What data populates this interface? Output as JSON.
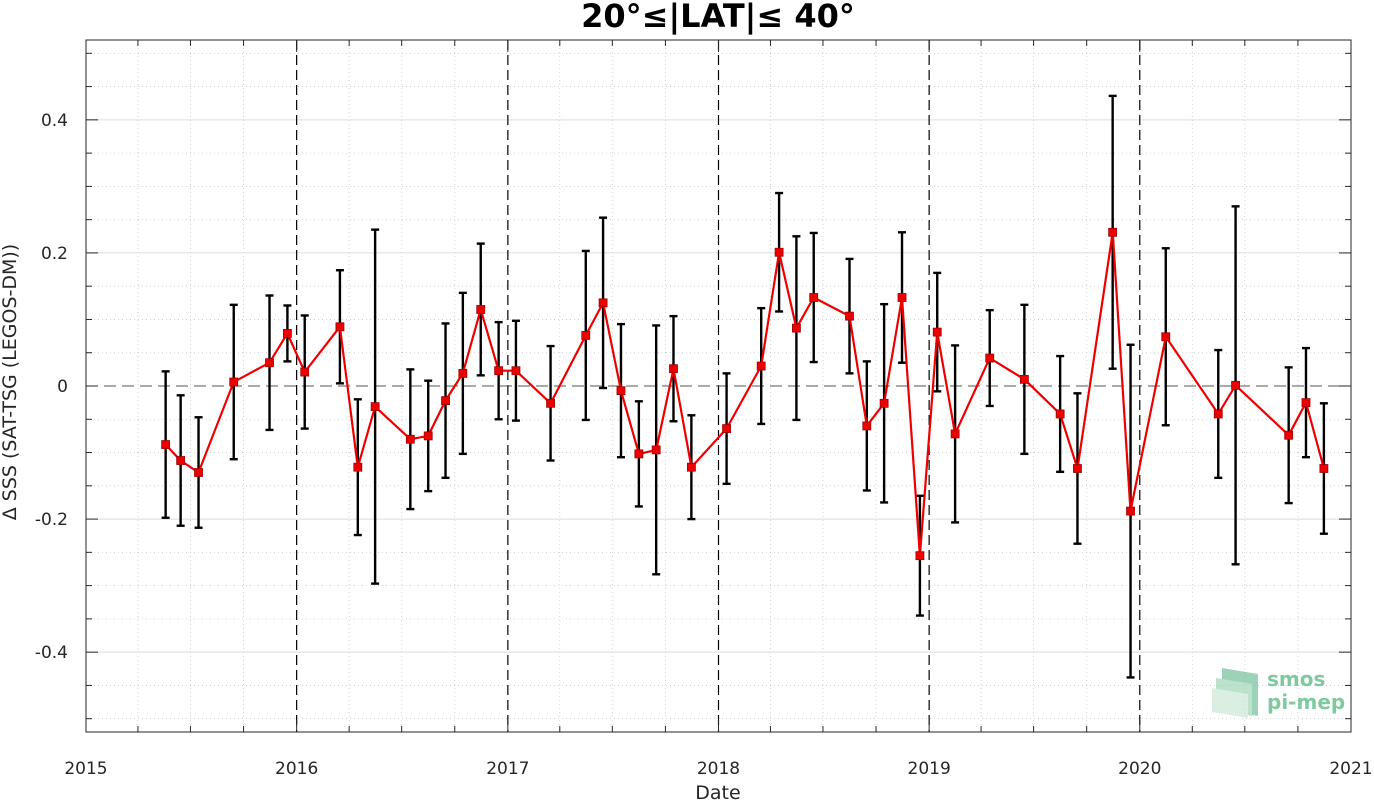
{
  "chart_data": {
    "type": "line",
    "title": "20°≤|LAT|≤ 40°",
    "xlabel": "Date",
    "ylabel": "Δ SSS (SAT-TSG (LEGOS-DM))",
    "xlim": [
      "2015-01-01",
      "2021-01-01"
    ],
    "ylim": [
      -0.52,
      0.52
    ],
    "x_tick_labels": [
      "2015",
      "2016",
      "2017",
      "2018",
      "2019",
      "2020",
      "2021"
    ],
    "y_ticks": [
      -0.4,
      -0.2,
      0,
      0.2,
      0.4
    ],
    "y_tick_labels": [
      "-0.4",
      "-0.2",
      "0",
      "0.2",
      "0.4"
    ],
    "grid": true,
    "year_boundary_dashed_lines": [
      "2016",
      "2017",
      "2018",
      "2019",
      "2020"
    ],
    "zero_reference_line": 0,
    "colors": {
      "series": "#ee0000",
      "errorbar": "#000000",
      "gridline": "#c8c8c8"
    },
    "series": [
      {
        "x": [
          "2015-05-19",
          "2015-06-14",
          "2015-07-15",
          "2015-09-14",
          "2015-11-15",
          "2015-12-16",
          "2016-01-15",
          "2016-03-16",
          "2016-04-16",
          "2016-05-16",
          "2016-07-16",
          "2016-08-16",
          "2016-09-15",
          "2016-10-15",
          "2016-11-15",
          "2016-12-16",
          "2017-01-15",
          "2017-03-16",
          "2017-05-16",
          "2017-06-15",
          "2017-07-16",
          "2017-08-16",
          "2017-09-15",
          "2017-10-15",
          "2017-11-15",
          "2018-01-15",
          "2018-03-16",
          "2018-04-16",
          "2018-05-16",
          "2018-06-15",
          "2018-08-16",
          "2018-09-15",
          "2018-10-15",
          "2018-11-15",
          "2018-12-16",
          "2019-01-15",
          "2019-02-15",
          "2019-04-16",
          "2019-06-15",
          "2019-08-16",
          "2019-09-15",
          "2019-11-15",
          "2019-12-16",
          "2020-02-15",
          "2020-05-16",
          "2020-06-15",
          "2020-09-15",
          "2020-10-15",
          "2020-11-15"
        ],
        "y": [
          -0.088,
          -0.112,
          -0.13,
          0.006,
          0.035,
          0.079,
          0.021,
          0.089,
          -0.122,
          -0.031,
          -0.08,
          -0.075,
          -0.022,
          0.019,
          0.115,
          0.023,
          0.023,
          -0.026,
          0.076,
          0.125,
          -0.007,
          -0.102,
          -0.096,
          0.026,
          -0.122,
          -0.064,
          0.03,
          0.201,
          0.087,
          0.133,
          0.105,
          -0.06,
          -0.026,
          0.133,
          -0.255,
          0.081,
          -0.072,
          0.042,
          0.01,
          -0.042,
          -0.124,
          0.231,
          -0.188,
          0.074,
          -0.042,
          0.001,
          -0.074,
          -0.025,
          -0.124
        ],
        "error": [
          0.11,
          0.098,
          0.083,
          0.116,
          0.101,
          0.042,
          0.085,
          0.085,
          0.102,
          0.266,
          0.105,
          0.083,
          0.116,
          0.121,
          0.099,
          0.073,
          0.075,
          0.086,
          0.127,
          0.128,
          0.1,
          0.079,
          0.187,
          0.079,
          0.078,
          0.083,
          0.087,
          0.089,
          0.138,
          0.097,
          0.086,
          0.097,
          0.149,
          0.098,
          0.09,
          0.089,
          0.133,
          0.072,
          0.112,
          0.087,
          0.113,
          0.205,
          0.25,
          0.133,
          0.096,
          0.269,
          0.102,
          0.082,
          0.098
        ]
      }
    ]
  },
  "logo": {
    "line1": "smos",
    "line2": "pi-mep"
  }
}
